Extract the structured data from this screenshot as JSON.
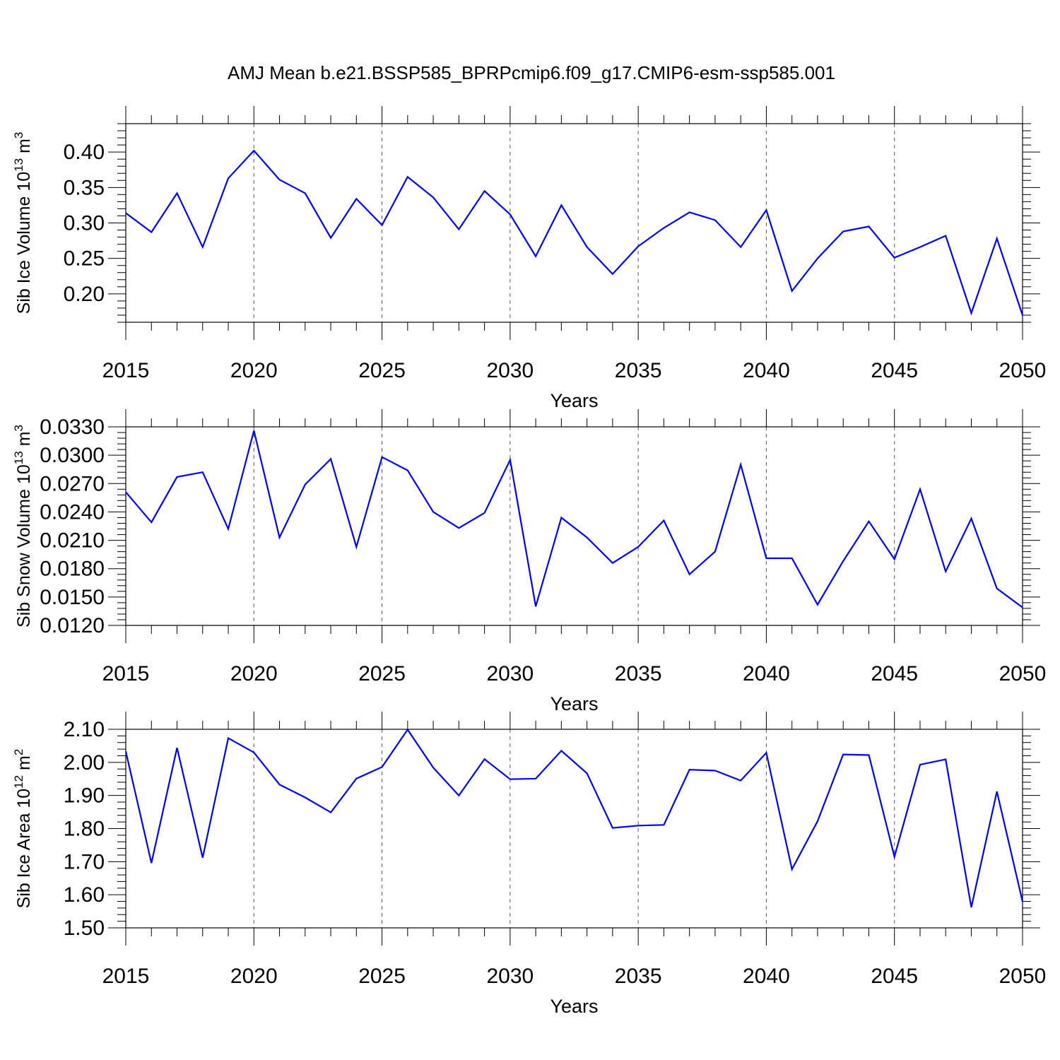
{
  "title": "AMJ Mean b.e21.BSSP585_BPRPcmip6.f09_g17.CMIP6-esm-ssp585.001",
  "colors": {
    "line": "#0000ff",
    "axis": "#000000",
    "grid": "#555555"
  },
  "chart_data": [
    {
      "type": "line",
      "id": "ice-volume",
      "xlabel": "Years",
      "ylabel": {
        "text": "Sib Ice Volume 10",
        "sup": "13",
        "rest": " m",
        "sup2": "3"
      },
      "xlim": [
        2015,
        2050
      ],
      "ylim": [
        0.16,
        0.44
      ],
      "xticks": [
        2015,
        2020,
        2025,
        2030,
        2035,
        2040,
        2045,
        2050
      ],
      "yticks": [
        0.2,
        0.25,
        0.3,
        0.35,
        0.4
      ],
      "ytick_labels": [
        "0.20",
        "0.25",
        "0.30",
        "0.35",
        "0.40"
      ],
      "grid": "vertical dashed at major x ticks",
      "x": [
        2015,
        2016,
        2017,
        2018,
        2019,
        2020,
        2021,
        2022,
        2023,
        2024,
        2025,
        2026,
        2027,
        2028,
        2029,
        2030,
        2031,
        2032,
        2033,
        2034,
        2035,
        2036,
        2037,
        2038,
        2039,
        2040,
        2041,
        2042,
        2043,
        2044,
        2045,
        2046,
        2047,
        2048,
        2049,
        2050
      ],
      "values": [
        0.314,
        0.287,
        0.342,
        0.266,
        0.363,
        0.402,
        0.361,
        0.342,
        0.279,
        0.334,
        0.297,
        0.365,
        0.336,
        0.291,
        0.345,
        0.312,
        0.253,
        0.325,
        0.266,
        0.228,
        0.267,
        0.293,
        0.315,
        0.304,
        0.266,
        0.318,
        0.204,
        0.25,
        0.288,
        0.295,
        0.251,
        0.266,
        0.282,
        0.173,
        0.278,
        0.17
      ]
    },
    {
      "type": "line",
      "id": "snow-volume",
      "xlabel": "Years",
      "ylabel": {
        "text": "Sib Snow Volume 10",
        "sup": "13",
        "rest": " m",
        "sup2": "3"
      },
      "xlim": [
        2015,
        2050
      ],
      "ylim": [
        0.012,
        0.033
      ],
      "xticks": [
        2015,
        2020,
        2025,
        2030,
        2035,
        2040,
        2045,
        2050
      ],
      "yticks": [
        0.012,
        0.015,
        0.018,
        0.021,
        0.024,
        0.027,
        0.03,
        0.033
      ],
      "ytick_labels": [
        "0.0120",
        "0.0150",
        "0.0180",
        "0.0210",
        "0.0240",
        "0.0270",
        "0.0300",
        "0.0330"
      ],
      "grid": "vertical dashed at major x ticks",
      "x": [
        2015,
        2016,
        2017,
        2018,
        2019,
        2020,
        2021,
        2022,
        2023,
        2024,
        2025,
        2026,
        2027,
        2028,
        2029,
        2030,
        2031,
        2032,
        2033,
        2034,
        2035,
        2036,
        2037,
        2038,
        2039,
        2040,
        2041,
        2042,
        2043,
        2044,
        2045,
        2046,
        2047,
        2048,
        2049,
        2050
      ],
      "values": [
        0.0261,
        0.0229,
        0.0277,
        0.0282,
        0.0222,
        0.0326,
        0.0213,
        0.0269,
        0.0296,
        0.0203,
        0.0298,
        0.0284,
        0.024,
        0.0223,
        0.0239,
        0.0295,
        0.014,
        0.0234,
        0.0213,
        0.0186,
        0.0203,
        0.0231,
        0.0174,
        0.0198,
        0.029,
        0.0191,
        0.0191,
        0.0142,
        0.0188,
        0.023,
        0.019,
        0.0264,
        0.0177,
        0.0233,
        0.0159,
        0.0139
      ]
    },
    {
      "type": "line",
      "id": "ice-area",
      "xlabel": "Years",
      "ylabel": {
        "text": "Sib Ice Area 10",
        "sup": "12",
        "rest": " m",
        "sup2": "2"
      },
      "xlim": [
        2015,
        2050
      ],
      "ylim": [
        1.5,
        2.1
      ],
      "xticks": [
        2015,
        2020,
        2025,
        2030,
        2035,
        2040,
        2045,
        2050
      ],
      "yticks": [
        1.5,
        1.6,
        1.7,
        1.8,
        1.9,
        2.0,
        2.1
      ],
      "ytick_labels": [
        "1.50",
        "1.60",
        "1.70",
        "1.80",
        "1.90",
        "2.00",
        "2.10"
      ],
      "grid": "vertical dashed at major x ticks",
      "x": [
        2015,
        2016,
        2017,
        2018,
        2019,
        2020,
        2021,
        2022,
        2023,
        2024,
        2025,
        2026,
        2027,
        2028,
        2029,
        2030,
        2031,
        2032,
        2033,
        2034,
        2035,
        2036,
        2037,
        2038,
        2039,
        2040,
        2041,
        2042,
        2043,
        2044,
        2045,
        2046,
        2047,
        2048,
        2049,
        2050
      ],
      "values": [
        2.033,
        1.696,
        2.044,
        1.712,
        2.073,
        2.03,
        1.933,
        1.894,
        1.849,
        1.951,
        1.986,
        2.099,
        1.984,
        1.9,
        2.01,
        1.949,
        1.951,
        2.035,
        1.967,
        1.802,
        1.809,
        1.811,
        1.978,
        1.975,
        1.945,
        2.029,
        1.677,
        1.822,
        2.024,
        2.022,
        1.715,
        1.993,
        2.009,
        1.562,
        1.912,
        1.579
      ]
    }
  ]
}
